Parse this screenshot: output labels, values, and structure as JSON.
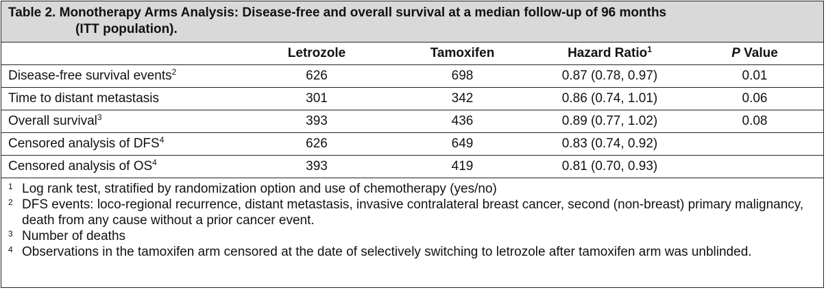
{
  "table": {
    "title_line1": "Table 2. Monotherapy Arms Analysis: Disease-free and overall survival at a median follow-up of 96 months",
    "title_line2": "(ITT population).",
    "headers": {
      "letrozole": "Letrozole",
      "tamoxifen": "Tamoxifen",
      "hazard_ratio": "Hazard Ratio",
      "hazard_ratio_sup": "1",
      "p_italic": "P",
      "p_rest": " Value"
    },
    "rows": [
      {
        "label": "Disease-free survival events",
        "sup": "2",
        "letrozole": "626",
        "tamoxifen": "698",
        "hr": "0.87 (0.78, 0.97)",
        "p": "0.01"
      },
      {
        "label": "Time to distant metastasis",
        "sup": "",
        "letrozole": "301",
        "tamoxifen": "342",
        "hr": "0.86 (0.74, 1.01)",
        "p": "0.06"
      },
      {
        "label": "Overall survival",
        "sup": "3",
        "letrozole": "393",
        "tamoxifen": "436",
        "hr": "0.89 (0.77, 1.02)",
        "p": "0.08"
      },
      {
        "label": "Censored analysis of DFS",
        "sup": "4",
        "letrozole": "626",
        "tamoxifen": "649",
        "hr": "0.83 (0.74, 0.92)",
        "p": ""
      },
      {
        "label": "Censored analysis of OS",
        "sup": "4",
        "letrozole": "393",
        "tamoxifen": "419",
        "hr": "0.81 (0.70, 0.93)",
        "p": ""
      }
    ],
    "footnotes": [
      {
        "mark": "1",
        "text": "Log rank test, stratified by randomization option and use of chemotherapy (yes/no)"
      },
      {
        "mark": "2",
        "text": "DFS events: loco-regional recurrence, distant metastasis, invasive contralateral breast cancer, second (non-breast) primary malignancy, death from any cause without a prior cancer event."
      },
      {
        "mark": "3",
        "text": "Number of deaths"
      },
      {
        "mark": "4",
        "text": "Observations in the tamoxifen arm censored at the date of selectively switching to letrozole after tamoxifen arm was unblinded."
      }
    ]
  }
}
